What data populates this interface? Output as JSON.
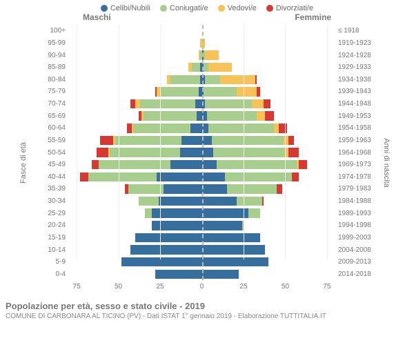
{
  "legend": [
    {
      "label": "Celibi/Nubili",
      "color": "#366f9d"
    },
    {
      "label": "Coniugati/e",
      "color": "#a7ce8d"
    },
    {
      "label": "Vedovi/e",
      "color": "#f7c257"
    },
    {
      "label": "Divorziati/e",
      "color": "#d73832"
    }
  ],
  "sex_m": "Maschi",
  "sex_f": "Femmine",
  "ylabel": "Fasce di età",
  "ylabel_r": "Anni di nascita",
  "title": "Popolazione per età, sesso e stato civile - 2019",
  "subtitle": "COMUNE DI CARBONARA AL TICINO (PV) - Dati ISTAT 1° gennaio 2019 - Elaborazione TUTTITALIA.IT",
  "xmax": 80,
  "xticks": [
    75,
    50,
    25,
    0,
    25,
    50,
    75
  ],
  "colors": {
    "single": "#366f9d",
    "married": "#a7ce8d",
    "widowed": "#f7c257",
    "divorced": "#d73832",
    "grid": "#eeeeee",
    "centerline": "#bbbbbb"
  },
  "rows": [
    {
      "age": "100+",
      "birth": "≤ 1918",
      "m": [
        0,
        0,
        0,
        0
      ],
      "f": [
        0,
        0,
        0,
        0
      ]
    },
    {
      "age": "95-99",
      "birth": "1919-1923",
      "m": [
        0,
        0,
        1,
        0
      ],
      "f": [
        0,
        0,
        2,
        0
      ]
    },
    {
      "age": "90-94",
      "birth": "1924-1928",
      "m": [
        0,
        1,
        1,
        0
      ],
      "f": [
        1,
        1,
        8,
        0
      ]
    },
    {
      "age": "85-89",
      "birth": "1929-1933",
      "m": [
        1,
        5,
        2,
        0
      ],
      "f": [
        1,
        3,
        14,
        0
      ]
    },
    {
      "age": "80-84",
      "birth": "1934-1938",
      "m": [
        1,
        18,
        2,
        0
      ],
      "f": [
        2,
        9,
        21,
        1
      ]
    },
    {
      "age": "75-79",
      "birth": "1939-1943",
      "m": [
        2,
        23,
        2,
        1
      ],
      "f": [
        1,
        20,
        12,
        2
      ]
    },
    {
      "age": "70-74",
      "birth": "1944-1948",
      "m": [
        4,
        33,
        3,
        3
      ],
      "f": [
        2,
        28,
        7,
        4
      ]
    },
    {
      "age": "65-69",
      "birth": "1949-1953",
      "m": [
        3,
        32,
        1,
        2
      ],
      "f": [
        3,
        30,
        5,
        5
      ]
    },
    {
      "age": "60-64",
      "birth": "1954-1958",
      "m": [
        7,
        34,
        1,
        3
      ],
      "f": [
        4,
        39,
        3,
        5
      ]
    },
    {
      "age": "55-59",
      "birth": "1959-1963",
      "m": [
        12,
        40,
        1,
        8
      ],
      "f": [
        6,
        43,
        3,
        3
      ]
    },
    {
      "age": "50-54",
      "birth": "1964-1968",
      "m": [
        13,
        42,
        1,
        7
      ],
      "f": [
        7,
        43,
        2,
        6
      ]
    },
    {
      "age": "45-49",
      "birth": "1969-1973",
      "m": [
        19,
        43,
        0,
        4
      ],
      "f": [
        9,
        48,
        1,
        5
      ]
    },
    {
      "age": "40-44",
      "birth": "1974-1978",
      "m": [
        27,
        41,
        0,
        5
      ],
      "f": [
        14,
        40,
        0,
        4
      ]
    },
    {
      "age": "35-39",
      "birth": "1979-1983",
      "m": [
        23,
        21,
        0,
        2
      ],
      "f": [
        15,
        30,
        0,
        3
      ]
    },
    {
      "age": "30-34",
      "birth": "1984-1988",
      "m": [
        26,
        12,
        0,
        0
      ],
      "f": [
        21,
        15,
        0,
        1
      ]
    },
    {
      "age": "25-29",
      "birth": "1989-1993",
      "m": [
        30,
        4,
        0,
        0
      ],
      "f": [
        28,
        7,
        0,
        0
      ]
    },
    {
      "age": "20-24",
      "birth": "1994-1998",
      "m": [
        30,
        0,
        0,
        0
      ],
      "f": [
        24,
        1,
        0,
        0
      ]
    },
    {
      "age": "15-19",
      "birth": "1999-2003",
      "m": [
        40,
        0,
        0,
        0
      ],
      "f": [
        35,
        0,
        0,
        0
      ]
    },
    {
      "age": "10-14",
      "birth": "2004-2008",
      "m": [
        43,
        0,
        0,
        0
      ],
      "f": [
        38,
        0,
        0,
        0
      ]
    },
    {
      "age": "5-9",
      "birth": "2009-2013",
      "m": [
        48,
        0,
        0,
        0
      ],
      "f": [
        40,
        0,
        0,
        0
      ]
    },
    {
      "age": "0-4",
      "birth": "2014-2018",
      "m": [
        28,
        0,
        0,
        0
      ],
      "f": [
        22,
        0,
        0,
        0
      ]
    }
  ]
}
